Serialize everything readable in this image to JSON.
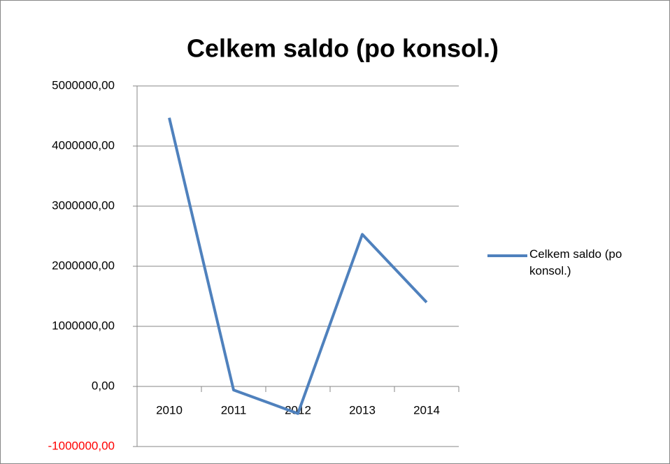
{
  "chart_data": {
    "type": "line",
    "title": "Celkem saldo (po konsol.)",
    "categories": [
      "2010",
      "2011",
      "2012",
      "2013",
      "2014"
    ],
    "series": [
      {
        "name": "Celkem saldo (po konsol.)",
        "color": "#4f81bd",
        "values": [
          4470000,
          -60000,
          -450000,
          2530000,
          1400000
        ]
      }
    ],
    "ylim": [
      -1000000,
      5000000
    ],
    "yticks": [
      {
        "value": -1000000,
        "label": "-1000000,00"
      },
      {
        "value": 0,
        "label": "0,00"
      },
      {
        "value": 1000000,
        "label": "1000000,00"
      },
      {
        "value": 2000000,
        "label": "2000000,00"
      },
      {
        "value": 3000000,
        "label": "3000000,00"
      },
      {
        "value": 4000000,
        "label": "4000000,00"
      },
      {
        "value": 5000000,
        "label": "5000000,00"
      }
    ],
    "negative_tick_color": "#ff0000",
    "grid": true,
    "legend": "right"
  }
}
